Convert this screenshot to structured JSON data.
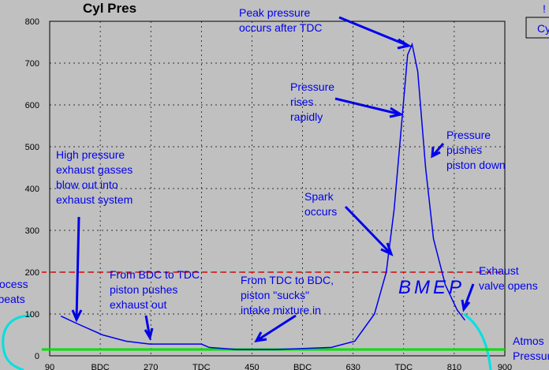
{
  "chart_data": {
    "type": "line",
    "title": "Cyl Pres",
    "x": [
      110,
      142,
      184,
      226,
      268,
      310,
      360,
      374,
      423,
      493,
      591,
      633,
      668,
      689,
      703,
      716,
      727,
      735,
      745,
      759,
      773,
      794,
      815,
      829
    ],
    "values": [
      95,
      75,
      50,
      35,
      28,
      28,
      28,
      20,
      15,
      15,
      20,
      35,
      100,
      200,
      350,
      550,
      720,
      745,
      680,
      450,
      280,
      170,
      110,
      85
    ],
    "color": "#0000ee",
    "xlim": [
      90,
      900
    ],
    "xticks": [
      90,
      {
        "value": 180,
        "label": "BDC"
      },
      270,
      {
        "value": 360,
        "label": "TDC"
      },
      450,
      {
        "value": 540,
        "label": "BDC"
      },
      630,
      {
        "value": 720,
        "label": "TDC"
      },
      810,
      900
    ],
    "ylim": [
      0,
      800
    ],
    "yticks": [
      0,
      100,
      200,
      300,
      400,
      500,
      600,
      700,
      800
    ],
    "grid": true,
    "reference_lines": [
      {
        "value": 15,
        "color": "#00e000",
        "dashed": false
      },
      {
        "value": 200,
        "color": "#e00000",
        "dashed": true
      }
    ],
    "annotations": [
      {
        "lines": [
          "Peak pressure",
          "occurs after TDC"
        ],
        "color": "#0000ee"
      },
      {
        "lines": [
          "Pressure",
          "rises",
          "rapidly"
        ],
        "color": "#0000ee"
      },
      {
        "lines": [
          "Pressure",
          "pushes",
          "piston down"
        ],
        "color": "#0000ee"
      },
      {
        "lines": [
          "High pressure",
          "exhaust gasses",
          "blow out into",
          "exhaust system"
        ],
        "color": "#0000ee"
      },
      {
        "lines": [
          "Spark",
          "occurs"
        ],
        "color": "#0000ee"
      },
      {
        "lines": [
          "From BDC to TDC,",
          "piston pushes",
          "exhaust out"
        ],
        "color": "#0000ee"
      },
      {
        "lines": [
          "From TDC to BDC,",
          "piston \"sucks\"",
          "intake mixture in"
        ],
        "color": "#0000ee"
      },
      {
        "lines": [
          "Exhaust",
          "valve opens"
        ],
        "color": "#0000ee"
      },
      {
        "lines": [
          "Process",
          "repeats"
        ],
        "color": "#00e0e0"
      },
      {
        "lines": [
          "Atmos",
          "Pressure"
        ],
        "color": "#00e000"
      },
      {
        "lines": [
          "BMEP"
        ],
        "color": "#ff0000"
      },
      {
        "lines": [
          "Cy"
        ],
        "color": "#0000ee"
      },
      {
        "lines": [
          "!"
        ],
        "color": "#000000"
      }
    ]
  }
}
